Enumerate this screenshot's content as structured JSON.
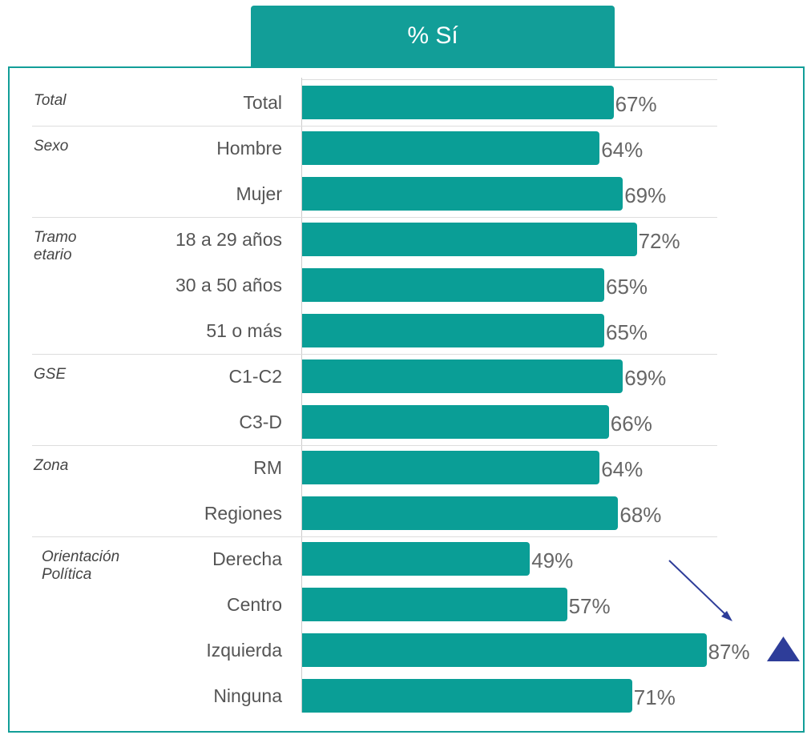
{
  "chart_data": {
    "type": "bar",
    "orientation": "horizontal",
    "title": "% Sí",
    "color": "#0a9e96",
    "groups": [
      {
        "name": "Total",
        "categories": [
          "Total"
        ],
        "values": [
          67
        ],
        "value_labels": [
          "67%"
        ]
      },
      {
        "name": "Sexo",
        "categories": [
          "Hombre",
          "Mujer"
        ],
        "values": [
          64,
          69
        ],
        "value_labels": [
          "64%",
          "69%"
        ]
      },
      {
        "name": "Tramo etario",
        "categories": [
          "18 a 29 años",
          "30 a 50 años",
          "51 o más"
        ],
        "values": [
          72,
          65,
          65
        ],
        "value_labels": [
          "72%",
          "65%",
          "65%"
        ]
      },
      {
        "name": "GSE",
        "categories": [
          "C1-C2",
          "C3-D"
        ],
        "values": [
          69,
          66
        ],
        "value_labels": [
          "69%",
          "66%"
        ]
      },
      {
        "name": "Zona",
        "categories": [
          "RM",
          "Regiones"
        ],
        "values": [
          64,
          68
        ],
        "value_labels": [
          "64%",
          "68%"
        ]
      },
      {
        "name": "Orientación Política",
        "categories": [
          "Derecha",
          "Centro",
          "Izquierda",
          "Ninguna"
        ],
        "values": [
          49,
          57,
          87,
          71
        ],
        "value_labels": [
          "49%",
          "57%",
          "87%",
          "71%"
        ]
      }
    ]
  }
}
